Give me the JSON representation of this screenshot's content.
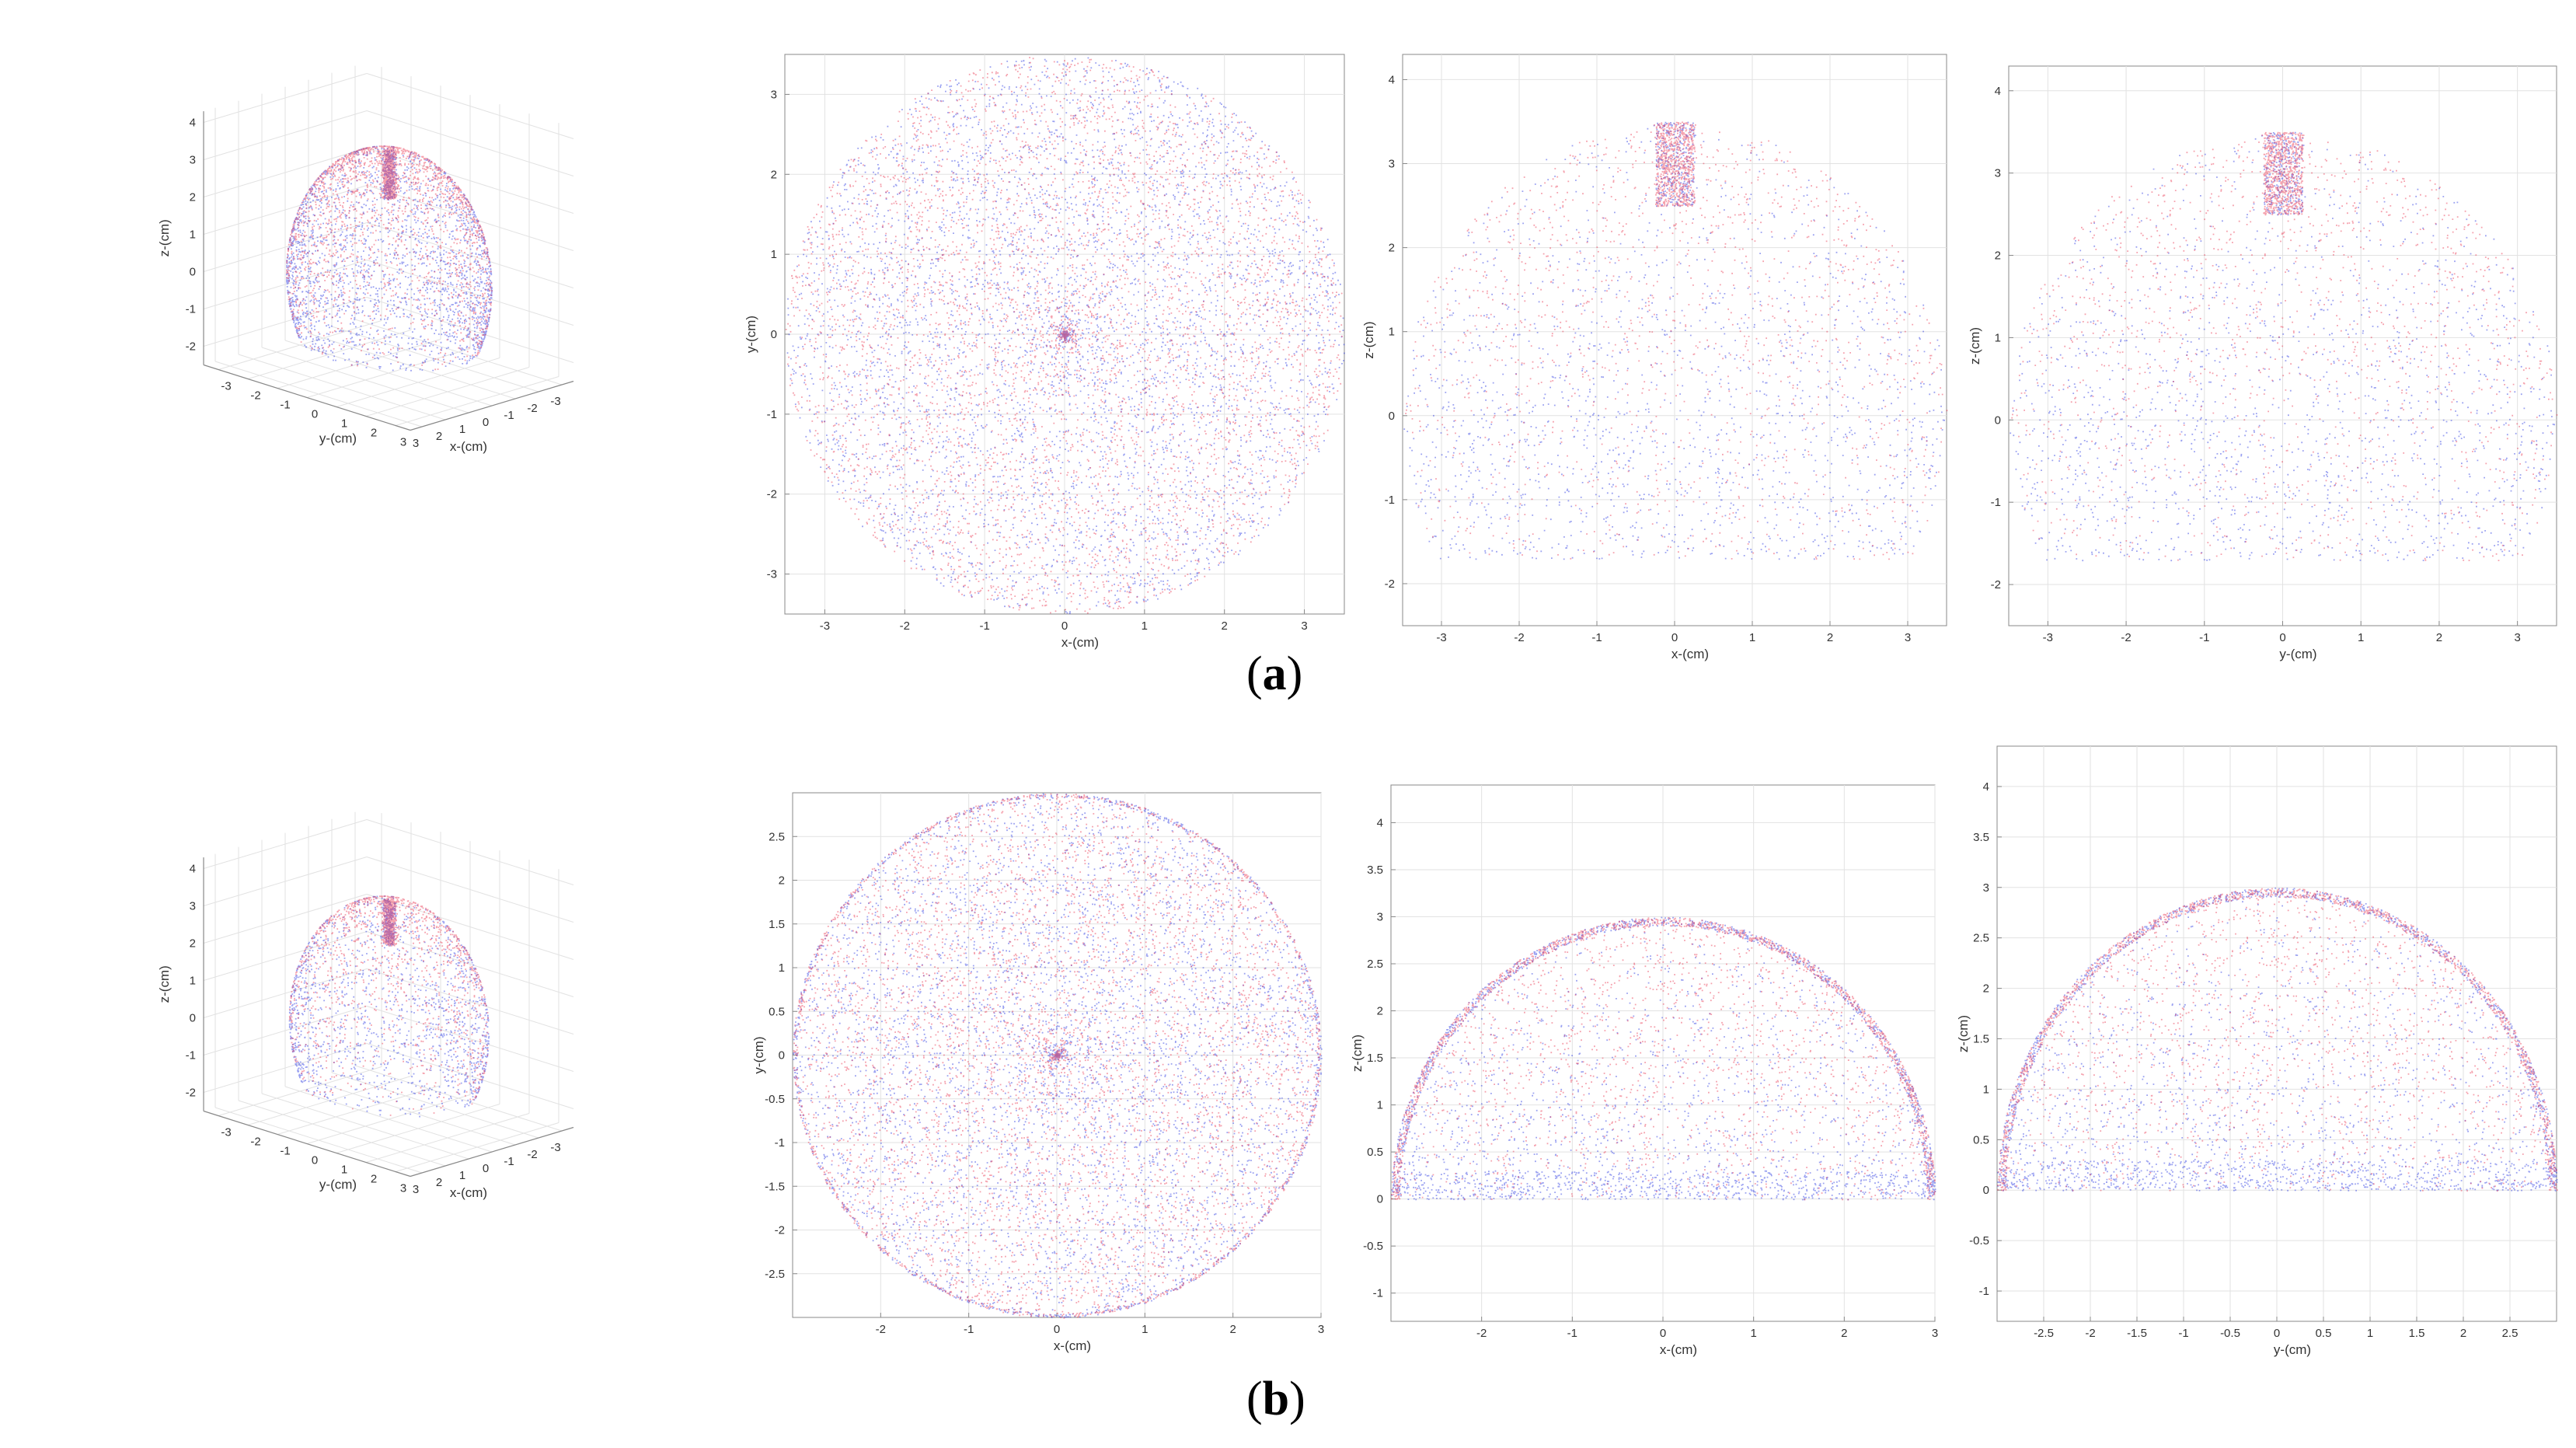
{
  "colors": {
    "red": "#e8203c",
    "blue": "#2230e0",
    "axis": "#888888",
    "grid": "#e2e2e2"
  },
  "captions": [
    {
      "open": "(",
      "letter": "a",
      "close": ")"
    },
    {
      "open": "(",
      "letter": "b",
      "close": ")"
    }
  ],
  "chart_data": [
    {
      "row": "a",
      "type": "scatter",
      "view": "3d",
      "shape": "partial-sphere",
      "radius": 3.5,
      "zmin": -1.7,
      "xlabel": "x-(cm)",
      "ylabel": "y-(cm)",
      "zlabel": "z-(cm)",
      "xticks": [
        "-3",
        "-2",
        "-1",
        "0",
        "1",
        "2",
        "3"
      ],
      "yticks": [
        "-3",
        "-2",
        "-1",
        "0",
        "1",
        "2",
        "3"
      ],
      "zticks": [
        "-2",
        "-1",
        "0",
        "1",
        "2",
        "3",
        "4"
      ],
      "zlim": [
        -2.5,
        4.3
      ]
    },
    {
      "row": "a",
      "type": "scatter",
      "view": "xy",
      "shape": "disk",
      "radius": 3.5,
      "xlabel": "x-(cm)",
      "ylabel": "y-(cm)",
      "xticks": [
        "-3",
        "-2",
        "-1",
        "0",
        "1",
        "2",
        "3"
      ],
      "yticks": [
        "-3",
        "-2",
        "-1",
        "0",
        "1",
        "2",
        "3"
      ],
      "xlim": [
        -3.5,
        3.5
      ],
      "ylim": [
        -3.5,
        3.5
      ]
    },
    {
      "row": "a",
      "type": "scatter",
      "view": "xz",
      "shape": "cap",
      "radius": 3.5,
      "zmin": -1.7,
      "xlabel": "x-(cm)",
      "ylabel": "z-(cm)",
      "xticks": [
        "-3",
        "-2",
        "-1",
        "0",
        "1",
        "2",
        "3"
      ],
      "yticks": [
        "-2",
        "-1",
        "0",
        "1",
        "2",
        "3",
        "4"
      ],
      "xlim": [
        -3.5,
        3.5
      ],
      "ylim": [
        -2.5,
        4.3
      ]
    },
    {
      "row": "a",
      "type": "scatter",
      "view": "yz",
      "shape": "cap",
      "radius": 3.5,
      "zmin": -1.7,
      "xlabel": "y-(cm)",
      "ylabel": "z-(cm)",
      "xticks": [
        "-3",
        "-2",
        "-1",
        "0",
        "1",
        "2",
        "3"
      ],
      "yticks": [
        "-2",
        "-1",
        "0",
        "1",
        "2",
        "3",
        "4"
      ],
      "xlim": [
        -3.5,
        3.5
      ],
      "ylim": [
        -2.5,
        4.3
      ]
    },
    {
      "row": "b",
      "type": "scatter",
      "view": "3d",
      "shape": "partial-sphere",
      "radius": 3.4,
      "zmin": -1.7,
      "xlabel": "x-(cm)",
      "ylabel": "y-(cm)",
      "zlabel": "z-(cm)",
      "xticks": [
        "-3",
        "-2",
        "-1",
        "0",
        "1",
        "2",
        "3"
      ],
      "yticks": [
        "-3",
        "-2",
        "-1",
        "0",
        "1",
        "2",
        "3"
      ],
      "zticks": [
        "-2",
        "-1",
        "0",
        "1",
        "2",
        "3",
        "4"
      ],
      "zlim": [
        -2.5,
        4.3
      ]
    },
    {
      "row": "b",
      "type": "scatter",
      "view": "xy",
      "shape": "disk",
      "radius": 3.0,
      "xlabel": "x-(cm)",
      "ylabel": "y-(cm)",
      "xticks": [
        "-2",
        "-1",
        "0",
        "1",
        "2",
        "3"
      ],
      "yticks": [
        "-2.5",
        "-2",
        "-1.5",
        "-1",
        "-0.5",
        "0",
        "0.5",
        "1",
        "1.5",
        "2",
        "2.5"
      ],
      "xlim": [
        -3,
        3
      ],
      "ylim": [
        -3,
        3
      ]
    },
    {
      "row": "b",
      "type": "scatter",
      "view": "xz",
      "shape": "hemisphere",
      "radius": 3.0,
      "zmin": 0,
      "xlabel": "x-(cm)",
      "ylabel": "z-(cm)",
      "xticks": [
        "-2",
        "-1",
        "0",
        "1",
        "2",
        "3"
      ],
      "yticks": [
        "-1",
        "-0.5",
        "0",
        "0.5",
        "1",
        "1.5",
        "2",
        "2.5",
        "3",
        "3.5",
        "4"
      ],
      "xlim": [
        -3,
        3
      ],
      "ylim": [
        -1.3,
        4.4
      ]
    },
    {
      "row": "b",
      "type": "scatter",
      "view": "yz",
      "shape": "hemisphere",
      "radius": 3.0,
      "zmin": 0,
      "xlabel": "y-(cm)",
      "ylabel": "z-(cm)",
      "xticks": [
        "-2.5",
        "-2",
        "-1.5",
        "-1",
        "-0.5",
        "0",
        "0.5",
        "1",
        "1.5",
        "2",
        "2.5"
      ],
      "yticks": [
        "-1",
        "-0.5",
        "0",
        "0.5",
        "1",
        "1.5",
        "2",
        "2.5",
        "3",
        "3.5",
        "4"
      ],
      "xlim": [
        -3,
        3
      ],
      "ylim": [
        -1.3,
        4.4
      ]
    }
  ]
}
